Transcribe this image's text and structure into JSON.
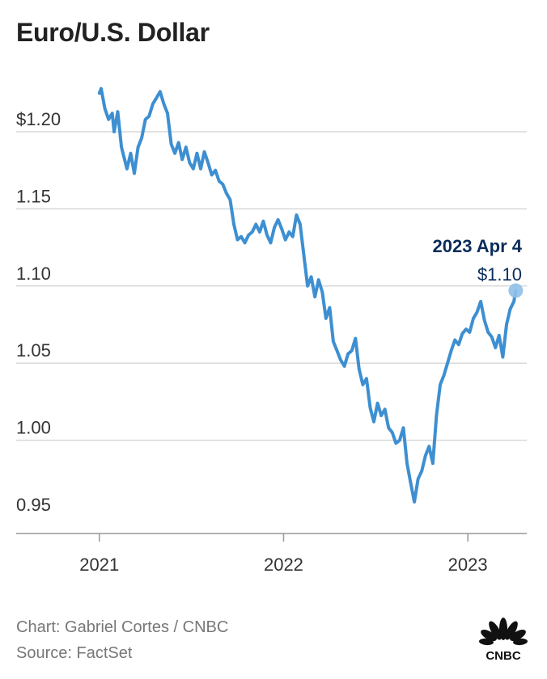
{
  "title": "Euro/U.S. Dollar",
  "credit_line": "Chart: Gabriel Cortes / CNBC",
  "source_line": "Source: FactSet",
  "logo_text": "CNBC",
  "colors": {
    "line": "#3d8fd1",
    "grid": "#d9d9d9",
    "annotation": "#0b2c5a",
    "marker": "#8ec0e8"
  },
  "annotation": {
    "date_label": "2023 Apr 4",
    "value_label": "$1.10",
    "x": 2023.26,
    "y": 1.097
  },
  "chart_data": {
    "type": "line",
    "title": "Euro/U.S. Dollar",
    "xlabel": "",
    "ylabel": "",
    "ylim": [
      0.95,
      1.2
    ],
    "xlim": [
      2020.9,
      2023.32
    ],
    "grid": "horizontal",
    "y_ticks": [
      1.2,
      1.15,
      1.1,
      1.05,
      1.0,
      0.95
    ],
    "y_tick_labels": [
      "$1.20",
      "1.15",
      "1.10",
      "1.05",
      "1.00",
      "0.95"
    ],
    "x_ticks": [
      2021,
      2022,
      2023
    ],
    "x_tick_labels": [
      "2021",
      "2022",
      "2023"
    ],
    "series": [
      {
        "x": [
          2021.0,
          2021.01,
          2021.03,
          2021.05,
          2021.07,
          2021.08,
          2021.1,
          2021.12,
          2021.15,
          2021.17,
          2021.19,
          2021.21,
          2021.23,
          2021.25,
          2021.27,
          2021.29,
          2021.31,
          2021.33,
          2021.35,
          2021.37,
          2021.39,
          2021.41,
          2021.43,
          2021.45,
          2021.47,
          2021.49,
          2021.51,
          2021.53,
          2021.55,
          2021.57,
          2021.59,
          2021.61,
          2021.63,
          2021.65,
          2021.67,
          2021.69,
          2021.71,
          2021.73,
          2021.75,
          2021.77,
          2021.79,
          2021.81,
          2021.83,
          2021.85,
          2021.87,
          2021.89,
          2021.91,
          2021.93,
          2021.95,
          2021.97,
          2021.99,
          2022.01,
          2022.03,
          2022.05,
          2022.07,
          2022.09,
          2022.11,
          2022.13,
          2022.15,
          2022.17,
          2022.19,
          2022.21,
          2022.23,
          2022.25,
          2022.27,
          2022.29,
          2022.31,
          2022.33,
          2022.35,
          2022.37,
          2022.39,
          2022.41,
          2022.43,
          2022.45,
          2022.47,
          2022.49,
          2022.51,
          2022.53,
          2022.55,
          2022.57,
          2022.59,
          2022.61,
          2022.63,
          2022.65,
          2022.67,
          2022.69,
          2022.71,
          2022.73,
          2022.75,
          2022.77,
          2022.79,
          2022.81,
          2022.83,
          2022.85,
          2022.87,
          2022.89,
          2022.91,
          2022.93,
          2022.95,
          2022.97,
          2022.99,
          2023.01,
          2023.03,
          2023.05,
          2023.07,
          2023.09,
          2023.11,
          2023.13,
          2023.15,
          2023.17,
          2023.19,
          2023.21,
          2023.23,
          2023.25,
          2023.26
        ],
        "values": [
          1.225,
          1.228,
          1.215,
          1.208,
          1.212,
          1.2,
          1.213,
          1.19,
          1.176,
          1.186,
          1.173,
          1.19,
          1.196,
          1.208,
          1.21,
          1.218,
          1.222,
          1.226,
          1.218,
          1.212,
          1.192,
          1.186,
          1.193,
          1.182,
          1.19,
          1.18,
          1.176,
          1.186,
          1.176,
          1.187,
          1.18,
          1.172,
          1.175,
          1.168,
          1.166,
          1.16,
          1.156,
          1.14,
          1.13,
          1.132,
          1.128,
          1.133,
          1.135,
          1.14,
          1.135,
          1.142,
          1.133,
          1.128,
          1.138,
          1.143,
          1.137,
          1.13,
          1.135,
          1.132,
          1.146,
          1.14,
          1.12,
          1.1,
          1.106,
          1.093,
          1.104,
          1.096,
          1.079,
          1.086,
          1.064,
          1.058,
          1.052,
          1.048,
          1.056,
          1.058,
          1.066,
          1.046,
          1.036,
          1.04,
          1.021,
          1.012,
          1.024,
          1.016,
          1.02,
          1.008,
          1.005,
          0.998,
          1.0,
          1.008,
          0.985,
          0.972,
          0.96,
          0.975,
          0.98,
          0.99,
          0.996,
          0.985,
          1.016,
          1.036,
          1.042,
          1.05,
          1.058,
          1.065,
          1.062,
          1.069,
          1.072,
          1.07,
          1.079,
          1.083,
          1.09,
          1.078,
          1.07,
          1.067,
          1.06,
          1.068,
          1.054,
          1.075,
          1.085,
          1.09,
          1.097
        ]
      }
    ]
  }
}
